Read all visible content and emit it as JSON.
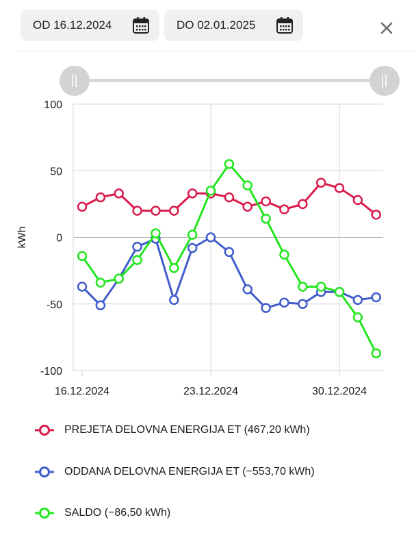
{
  "filter": {
    "from_label": "OD 16.12.2024",
    "to_label": "DO 02.01.2025"
  },
  "colors": {
    "prejeta": "#d81b4c",
    "oddana": "#3f5bcc",
    "saldo": "#22e61e",
    "grid": "#d6d6d6"
  },
  "chart_data": {
    "type": "line",
    "ylabel": "kWh",
    "ylim": [
      -100,
      100
    ],
    "yticks": [
      100,
      50,
      0,
      -50,
      -100
    ],
    "grid": true,
    "legend_position": "bottom",
    "x": [
      "16.12.2024",
      "17.12.2024",
      "18.12.2024",
      "19.12.2024",
      "20.12.2024",
      "21.12.2024",
      "22.12.2024",
      "23.12.2024",
      "24.12.2024",
      "25.12.2024",
      "26.12.2024",
      "27.12.2024",
      "28.12.2024",
      "29.12.2024",
      "30.12.2024",
      "31.12.2024",
      "01.01.2025"
    ],
    "xticks": [
      "16.12.2024",
      "23.12.2024",
      "30.12.2024"
    ],
    "series": [
      {
        "name": "PREJETA DELOVNA ENERGIJA ET (467,20 kWh)",
        "color_key": "prejeta",
        "values": [
          23,
          30,
          33,
          20,
          20,
          20,
          33,
          33,
          30,
          23,
          27,
          21,
          25,
          41,
          37,
          28,
          17
        ]
      },
      {
        "name": "ODDANA DELOVNA ENERGIJA ET (−553,70 kWh)",
        "color_key": "oddana",
        "values": [
          -37,
          -51,
          -31,
          -7,
          -1,
          -47,
          -8,
          0,
          -11,
          -39,
          -53,
          -49,
          -50,
          -41,
          -41,
          -47,
          -45
        ]
      },
      {
        "name": "SALDO (−86,50 kWh)",
        "color_key": "saldo",
        "values": [
          -14,
          -34,
          -31,
          -17,
          3,
          -23,
          2,
          35,
          55,
          39,
          14,
          -13,
          -37,
          -37,
          -41,
          -60,
          -87
        ]
      }
    ]
  }
}
